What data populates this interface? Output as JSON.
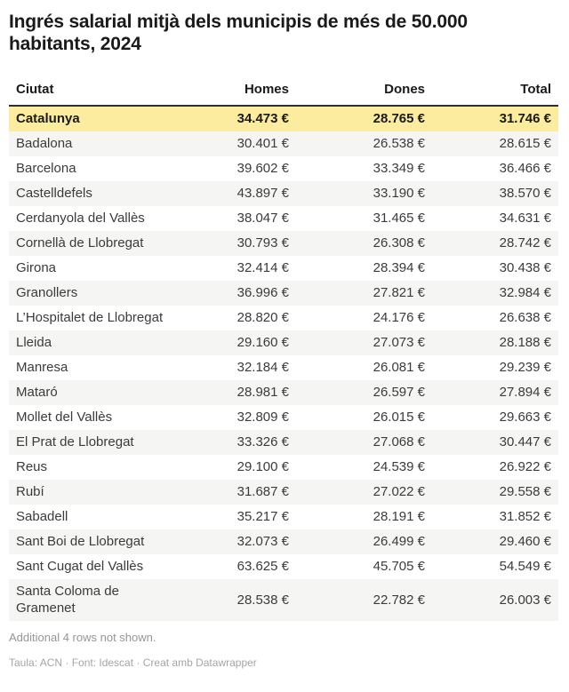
{
  "title": "Ingrés salarial mitjà dels municipis de més de 50.000 habitants, 2024",
  "table": {
    "columns": [
      "Ciutat",
      "Homes",
      "Dones",
      "Total"
    ],
    "rows": [
      {
        "ciutat": "Catalunya",
        "homes": "34.473 €",
        "dones": "28.765 €",
        "total": "31.746 €",
        "highlight": true
      },
      {
        "ciutat": "Badalona",
        "homes": "30.401 €",
        "dones": "26.538 €",
        "total": "28.615 €"
      },
      {
        "ciutat": "Barcelona",
        "homes": "39.602 €",
        "dones": "33.349 €",
        "total": "36.466 €"
      },
      {
        "ciutat": "Castelldefels",
        "homes": "43.897 €",
        "dones": "33.190 €",
        "total": "38.570 €"
      },
      {
        "ciutat": "Cerdanyola del Vallès",
        "homes": "38.047 €",
        "dones": "31.465 €",
        "total": "34.631 €"
      },
      {
        "ciutat": "Cornellà de Llobregat",
        "homes": "30.793 €",
        "dones": "26.308 €",
        "total": "28.742 €"
      },
      {
        "ciutat": "Girona",
        "homes": "32.414 €",
        "dones": "28.394 €",
        "total": "30.438 €"
      },
      {
        "ciutat": "Granollers",
        "homes": "36.996 €",
        "dones": "27.821 €",
        "total": "32.984 €"
      },
      {
        "ciutat": "L’Hospitalet de Llobregat",
        "homes": "28.820 €",
        "dones": "24.176 €",
        "total": "26.638 €"
      },
      {
        "ciutat": "Lleida",
        "homes": "29.160 €",
        "dones": "27.073 €",
        "total": "28.188 €"
      },
      {
        "ciutat": "Manresa",
        "homes": "32.184 €",
        "dones": "26.081 €",
        "total": "29.239 €"
      },
      {
        "ciutat": "Mataró",
        "homes": "28.981 €",
        "dones": "26.597 €",
        "total": "27.894 €"
      },
      {
        "ciutat": "Mollet del Vallès",
        "homes": "32.809 €",
        "dones": "26.015 €",
        "total": "29.663 €"
      },
      {
        "ciutat": "El Prat de Llobregat",
        "homes": "33.326 €",
        "dones": "27.068 €",
        "total": "30.447 €"
      },
      {
        "ciutat": "Reus",
        "homes": "29.100 €",
        "dones": "24.539 €",
        "total": "26.922 €"
      },
      {
        "ciutat": "Rubí",
        "homes": "31.687 €",
        "dones": "27.022 €",
        "total": "29.558 €"
      },
      {
        "ciutat": "Sabadell",
        "homes": "35.217 €",
        "dones": "28.191 €",
        "total": "31.852 €"
      },
      {
        "ciutat": "Sant Boi de Llobregat",
        "homes": "32.073 €",
        "dones": "26.499 €",
        "total": "29.460 €"
      },
      {
        "ciutat": "Sant Cugat del Vallès",
        "homes": "63.625 €",
        "dones": "45.705 €",
        "total": "54.549 €"
      },
      {
        "ciutat": "Santa Coloma de Gramenet",
        "homes": "28.538 €",
        "dones": "22.782 €",
        "total": "26.003 €"
      }
    ]
  },
  "footer": {
    "note": "Additional 4 rows not shown.",
    "attribution_prefix": "Taula: ACN · Font: Idescat · Creat amb ",
    "attribution_link": "Datawrapper"
  },
  "colors": {
    "highlight_bg": "#fcec9f",
    "stripe_bg": "#f5f5f4",
    "header_border": "#2e2e2e",
    "note_text": "#969696",
    "attribution_text": "#a5a5a5"
  },
  "chart_data": {
    "type": "table",
    "title": "Ingrés salarial mitjà dels municipis de més de 50.000 habitants, 2024",
    "columns": [
      "Ciutat",
      "Homes",
      "Dones",
      "Total"
    ],
    "unit": "€",
    "highlighted_row": "Catalunya",
    "rows": [
      [
        "Catalunya",
        34473,
        28765,
        31746
      ],
      [
        "Badalona",
        30401,
        26538,
        28615
      ],
      [
        "Barcelona",
        39602,
        33349,
        36466
      ],
      [
        "Castelldefels",
        43897,
        33190,
        38570
      ],
      [
        "Cerdanyola del Vallès",
        38047,
        31465,
        34631
      ],
      [
        "Cornellà de Llobregat",
        30793,
        26308,
        28742
      ],
      [
        "Girona",
        32414,
        28394,
        30438
      ],
      [
        "Granollers",
        36996,
        27821,
        32984
      ],
      [
        "L’Hospitalet de Llobregat",
        28820,
        24176,
        26638
      ],
      [
        "Lleida",
        29160,
        27073,
        28188
      ],
      [
        "Manresa",
        32184,
        26081,
        29239
      ],
      [
        "Mataró",
        28981,
        26597,
        27894
      ],
      [
        "Mollet del Vallès",
        32809,
        26015,
        29663
      ],
      [
        "El Prat de Llobregat",
        33326,
        27068,
        30447
      ],
      [
        "Reus",
        29100,
        24539,
        26922
      ],
      [
        "Rubí",
        31687,
        27022,
        29558
      ],
      [
        "Sabadell",
        35217,
        28191,
        31852
      ],
      [
        "Sant Boi de Llobregat",
        32073,
        26499,
        29460
      ],
      [
        "Sant Cugat del Vallès",
        63625,
        45705,
        54549
      ],
      [
        "Santa Coloma de Gramenet",
        28538,
        22782,
        26003
      ]
    ],
    "footnote": "Additional 4 rows not shown."
  }
}
